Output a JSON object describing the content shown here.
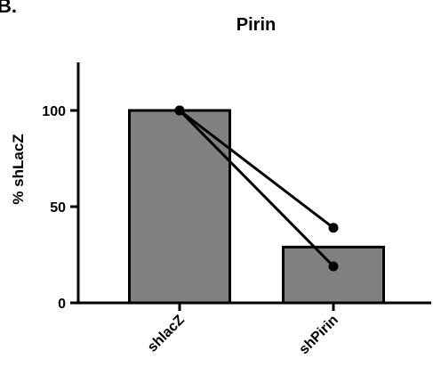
{
  "panel_letter": "B.",
  "chart_data": {
    "type": "bar",
    "title": "Pirin",
    "xlabel": "",
    "ylabel": "% shLacZ",
    "categories": [
      "shlacZ",
      "shPirin"
    ],
    "values": [
      100,
      29
    ],
    "ylim": [
      0,
      125
    ],
    "yticks": [
      0,
      50,
      100
    ],
    "grid": false,
    "bar_color": "#808080",
    "paired_points": [
      {
        "values": [
          100,
          39
        ]
      },
      {
        "values": [
          100,
          19
        ]
      }
    ]
  }
}
